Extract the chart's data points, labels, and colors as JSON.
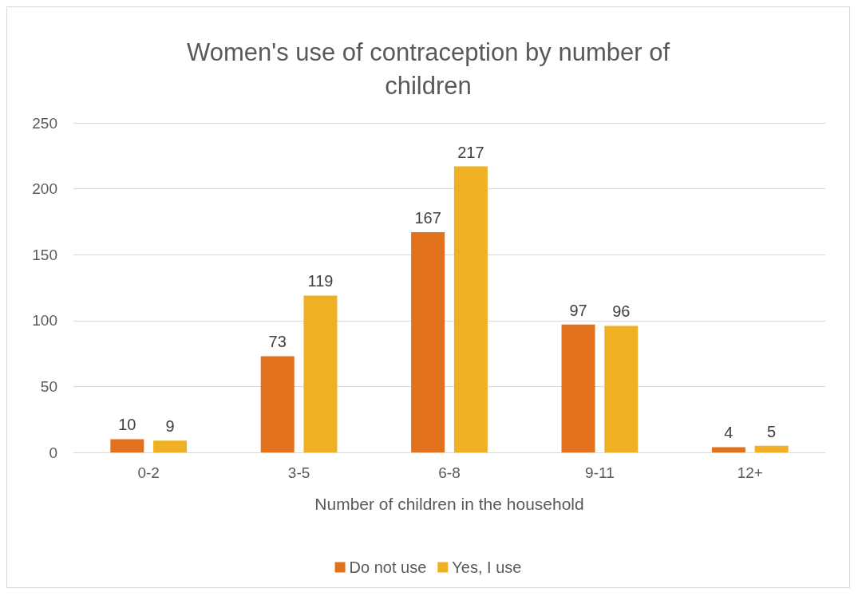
{
  "chart_data": {
    "type": "bar",
    "title": "Women's use of contraception by number of\nchildren",
    "xlabel": "Number of children in the household",
    "categories": [
      "0-2",
      "3-5",
      "6-8",
      "9-11",
      "12+"
    ],
    "series": [
      {
        "name": "Do not use",
        "color": "#e2711d",
        "values": [
          10,
          73,
          167,
          97,
          4
        ]
      },
      {
        "name": "Yes, I use",
        "color": "#f0b023",
        "values": [
          9,
          119,
          217,
          96,
          5
        ]
      }
    ],
    "ylim": [
      0,
      250
    ],
    "yticks": [
      0,
      50,
      100,
      150,
      200,
      250
    ],
    "grid": "y",
    "legend": "bottom",
    "data_labels": true
  }
}
